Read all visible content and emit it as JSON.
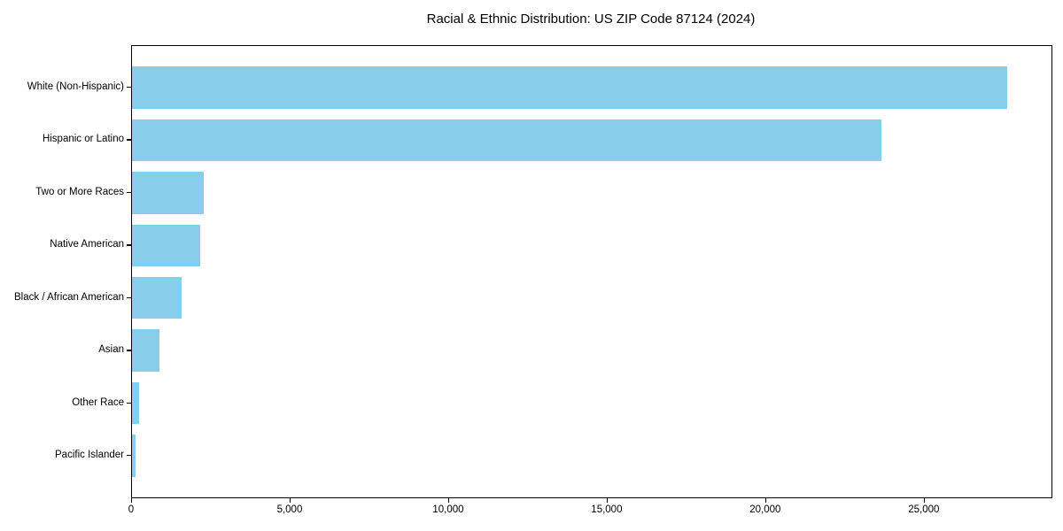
{
  "title": "Racial & Ethnic Distribution: US ZIP Code 87124 (2024)",
  "chart_data": {
    "type": "bar",
    "orientation": "horizontal",
    "title": "Racial & Ethnic Distribution: US ZIP Code 87124 (2024)",
    "categories": [
      "White (Non-Hispanic)",
      "Hispanic or Latino",
      "Two or More Races",
      "Native American",
      "Black / African American",
      "Asian",
      "Other Race",
      "Pacific Islander"
    ],
    "values": [
      27600,
      23630,
      2270,
      2150,
      1570,
      870,
      210,
      120
    ],
    "xlabel": "",
    "ylabel": "",
    "xlim": [
      0,
      29000
    ],
    "x_ticks": [
      0,
      5000,
      10000,
      15000,
      20000,
      25000
    ],
    "x_tick_labels": [
      "0",
      "5,000",
      "10,000",
      "15,000",
      "20,000",
      "25,000"
    ],
    "grid": false,
    "legend": "none",
    "bar_color": "#87CEEB",
    "axis_color": "#000000",
    "background_color": "#FFFFFF",
    "bar_relative_height": 0.8
  }
}
